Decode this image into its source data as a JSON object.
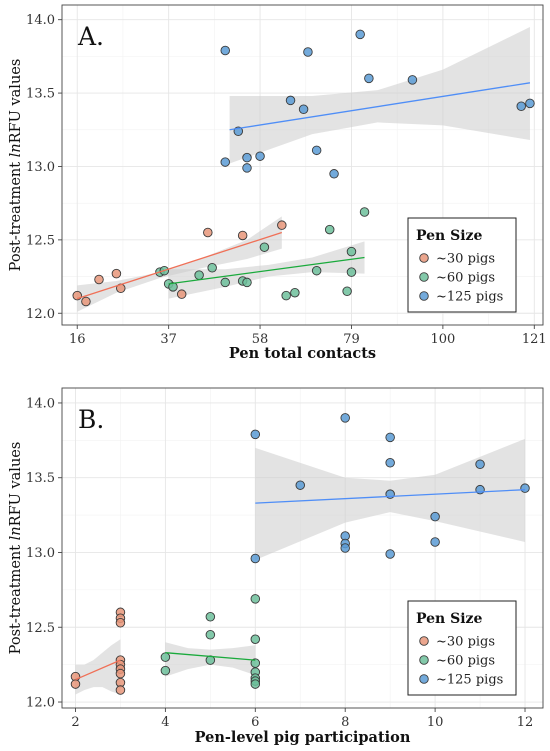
{
  "chart_data": [
    {
      "type": "scatter",
      "panel_label": "A.",
      "xlabel": "Pen total contacts",
      "ylabel_prefix": "Post-treatment ",
      "ylabel_italic": "ln",
      "ylabel_suffix": "RFU values",
      "xlim": [
        12.5,
        123
      ],
      "ylim": [
        11.92,
        14.1
      ],
      "xticks": [
        16,
        37,
        58,
        79,
        100,
        121
      ],
      "yticks": [
        12.0,
        12.5,
        13.0,
        13.5,
        14.0
      ],
      "ytick_labels": [
        "12.0",
        "12.5",
        "13.0",
        "13.5",
        "14.0"
      ],
      "grid": true,
      "legend_position": "bottom-right",
      "legend": {
        "title": "Pen Size",
        "entries": [
          "~30 pigs",
          "~60 pigs",
          "~125 pigs"
        ]
      },
      "series": [
        {
          "name": "~30 pigs",
          "color": "#e8967a",
          "line_color": "#f07057",
          "points": [
            [
              16,
              12.12
            ],
            [
              18,
              12.08
            ],
            [
              21,
              12.23
            ],
            [
              25,
              12.27
            ],
            [
              26,
              12.17
            ],
            [
              40,
              12.13
            ],
            [
              46,
              12.55
            ],
            [
              54,
              12.53
            ],
            [
              63,
              12.6
            ]
          ],
          "trend": [
            [
              16,
              12.1
            ],
            [
              63,
              12.55
            ]
          ],
          "band_upper": [
            [
              16,
              12.19
            ],
            [
              25,
              12.22
            ],
            [
              35,
              12.28
            ],
            [
              45,
              12.38
            ],
            [
              55,
              12.5
            ],
            [
              63,
              12.66
            ]
          ],
          "band_lower": [
            [
              16,
              12.01
            ],
            [
              25,
              12.14
            ],
            [
              35,
              12.24
            ],
            [
              45,
              12.31
            ],
            [
              55,
              12.37
            ],
            [
              63,
              12.44
            ]
          ]
        },
        {
          "name": "~60 pigs",
          "color": "#6dbf9b",
          "line_color": "#1aaa3c",
          "points": [
            [
              35,
              12.28
            ],
            [
              36,
              12.29
            ],
            [
              37,
              12.2
            ],
            [
              38,
              12.18
            ],
            [
              44,
              12.26
            ],
            [
              47,
              12.31
            ],
            [
              50,
              12.21
            ],
            [
              54,
              12.22
            ],
            [
              55,
              12.21
            ],
            [
              59,
              12.45
            ],
            [
              64,
              12.12
            ],
            [
              66,
              12.14
            ],
            [
              71,
              12.29
            ],
            [
              74,
              12.57
            ],
            [
              78,
              12.15
            ],
            [
              79,
              12.28
            ],
            [
              79,
              12.42
            ],
            [
              82,
              12.69
            ]
          ],
          "trend": [
            [
              37,
              12.2
            ],
            [
              82,
              12.38
            ]
          ],
          "band_upper": [
            [
              37,
              12.3
            ],
            [
              50,
              12.3
            ],
            [
              60,
              12.33
            ],
            [
              70,
              12.38
            ],
            [
              82,
              12.49
            ]
          ],
          "band_lower": [
            [
              37,
              12.1
            ],
            [
              50,
              12.18
            ],
            [
              60,
              12.25
            ],
            [
              70,
              12.28
            ],
            [
              82,
              12.27
            ]
          ]
        },
        {
          "name": "~125 pigs",
          "color": "#5b9bd5",
          "line_color": "#4f8ef7",
          "points": [
            [
              50,
              13.79
            ],
            [
              50,
              13.03
            ],
            [
              53,
              13.24
            ],
            [
              55,
              13.06
            ],
            [
              55,
              12.99
            ],
            [
              58,
              13.07
            ],
            [
              65,
              13.45
            ],
            [
              68,
              13.39
            ],
            [
              69,
              13.78
            ],
            [
              71,
              13.11
            ],
            [
              75,
              12.95
            ],
            [
              81,
              13.9
            ],
            [
              83,
              13.6
            ],
            [
              93,
              13.59
            ],
            [
              118,
              13.41
            ],
            [
              120,
              13.43
            ]
          ],
          "trend": [
            [
              51,
              13.25
            ],
            [
              120,
              13.57
            ]
          ],
          "band_upper": [
            [
              51,
              13.48
            ],
            [
              70,
              13.48
            ],
            [
              85,
              13.52
            ],
            [
              100,
              13.66
            ],
            [
              120,
              13.95
            ]
          ],
          "band_lower": [
            [
              51,
              13.02
            ],
            [
              70,
              13.22
            ],
            [
              85,
              13.3
            ],
            [
              100,
              13.28
            ],
            [
              120,
              13.18
            ]
          ]
        }
      ]
    },
    {
      "type": "scatter",
      "panel_label": "B.",
      "xlabel": "Pen-level pig participation",
      "ylabel_prefix": "Post-treatment ",
      "ylabel_italic": "ln",
      "ylabel_suffix": "RFU values",
      "xlim": [
        1.7,
        12.4
      ],
      "ylim": [
        11.96,
        14.1
      ],
      "xticks": [
        2,
        4,
        6,
        8,
        10,
        12
      ],
      "yticks": [
        12.0,
        12.5,
        13.0,
        13.5,
        14.0
      ],
      "ytick_labels": [
        "12.0",
        "12.5",
        "13.0",
        "13.5",
        "14.0"
      ],
      "grid": true,
      "legend_position": "bottom-right",
      "legend": {
        "title": "Pen Size",
        "entries": [
          "~30 pigs",
          "~60 pigs",
          "~125 pigs"
        ]
      },
      "series": [
        {
          "name": "~30 pigs",
          "color": "#e8967a",
          "line_color": "#f07057",
          "points": [
            [
              2,
              12.17
            ],
            [
              2,
              12.12
            ],
            [
              3,
              12.6
            ],
            [
              3,
              12.56
            ],
            [
              3,
              12.53
            ],
            [
              3,
              12.28
            ],
            [
              3,
              12.25
            ],
            [
              3,
              12.22
            ],
            [
              3,
              12.19
            ],
            [
              3,
              12.13
            ],
            [
              3,
              12.08
            ]
          ],
          "trend": [
            [
              2,
              12.15
            ],
            [
              3,
              12.28
            ]
          ],
          "band_upper": [
            [
              2,
              12.25
            ],
            [
              2.2,
              12.25
            ],
            [
              2.4,
              12.28
            ],
            [
              2.6,
              12.33
            ],
            [
              2.8,
              12.38
            ],
            [
              3,
              12.42
            ]
          ],
          "band_lower": [
            [
              2,
              12.05
            ],
            [
              2.2,
              12.08
            ],
            [
              2.4,
              12.1
            ],
            [
              2.6,
              12.1
            ],
            [
              2.8,
              12.07
            ],
            [
              3,
              12.05
            ]
          ]
        },
        {
          "name": "~60 pigs",
          "color": "#6dbf9b",
          "line_color": "#1aaa3c",
          "points": [
            [
              4,
              12.3
            ],
            [
              4,
              12.21
            ],
            [
              5,
              12.57
            ],
            [
              5,
              12.45
            ],
            [
              5,
              12.28
            ],
            [
              6,
              12.69
            ],
            [
              6,
              12.42
            ],
            [
              6,
              12.26
            ],
            [
              6,
              12.2
            ],
            [
              6,
              12.16
            ],
            [
              6,
              12.14
            ],
            [
              6,
              12.12
            ]
          ],
          "trend": [
            [
              4,
              12.33
            ],
            [
              6,
              12.28
            ]
          ],
          "band_upper": [
            [
              4,
              12.4
            ],
            [
              4.5,
              12.36
            ],
            [
              5,
              12.35
            ],
            [
              5.5,
              12.36
            ],
            [
              6,
              12.38
            ]
          ],
          "band_lower": [
            [
              4,
              12.17
            ],
            [
              4.5,
              12.22
            ],
            [
              5,
              12.25
            ],
            [
              5.5,
              12.23
            ],
            [
              6,
              12.18
            ]
          ]
        },
        {
          "name": "~125 pigs",
          "color": "#5b9bd5",
          "line_color": "#4f8ef7",
          "points": [
            [
              6,
              13.79
            ],
            [
              6,
              12.96
            ],
            [
              7,
              13.45
            ],
            [
              8,
              13.9
            ],
            [
              8,
              13.11
            ],
            [
              8,
              13.06
            ],
            [
              8,
              13.03
            ],
            [
              9,
              13.77
            ],
            [
              9,
              13.6
            ],
            [
              9,
              13.39
            ],
            [
              9,
              12.99
            ],
            [
              10,
              13.24
            ],
            [
              10,
              13.07
            ],
            [
              11,
              13.59
            ],
            [
              11,
              13.42
            ],
            [
              12,
              13.43
            ]
          ],
          "trend": [
            [
              6,
              13.33
            ],
            [
              12,
              13.42
            ]
          ],
          "band_upper": [
            [
              6,
              13.7
            ],
            [
              8,
              13.5
            ],
            [
              9,
              13.48
            ],
            [
              10,
              13.52
            ],
            [
              12,
              13.76
            ]
          ],
          "band_lower": [
            [
              6,
              12.95
            ],
            [
              8,
              13.2
            ],
            [
              9,
              13.27
            ],
            [
              10,
              13.21
            ],
            [
              12,
              13.07
            ]
          ]
        }
      ]
    }
  ]
}
